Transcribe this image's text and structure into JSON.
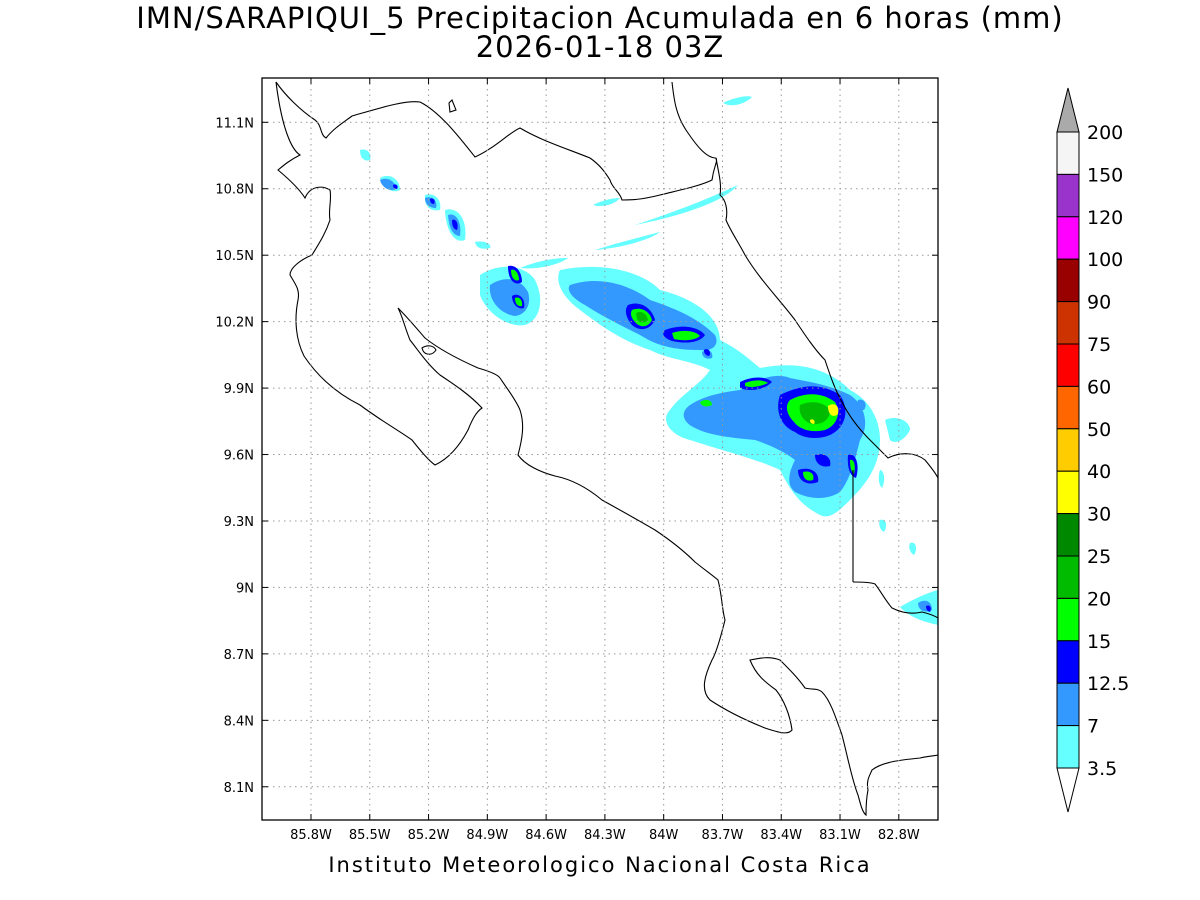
{
  "title": {
    "line1": "IMN/SARAPIQUI_5 Precipitacion Acumulada en 6 horas (mm)",
    "line2": "2026-01-18 03Z"
  },
  "credit": "Instituto Meteorologico Nacional Costa Rica",
  "map": {
    "lon_range": [
      -86.05,
      -82.6
    ],
    "lat_range": [
      7.95,
      11.3
    ],
    "lon_ticks": [
      "85.8W",
      "85.5W",
      "85.2W",
      "84.9W",
      "84.6W",
      "84.3W",
      "84W",
      "83.7W",
      "83.4W",
      "83.1W",
      "82.8W"
    ],
    "lat_ticks": [
      "11.1N",
      "10.8N",
      "10.5N",
      "10.2N",
      "9.9N",
      "9.6N",
      "9.3N",
      "9N",
      "8.7N",
      "8.4N",
      "8.1N"
    ],
    "grid": "dotted"
  },
  "colorbar": {
    "levels": [
      "200",
      "150",
      "120",
      "100",
      "90",
      "75",
      "60",
      "50",
      "40",
      "30",
      "25",
      "20",
      "15",
      "12.5",
      "7",
      "3.5"
    ],
    "colors": [
      "#f5f5f5",
      "#9933cc",
      "#ff00ff",
      "#990000",
      "#cc3300",
      "#ff0000",
      "#ff6600",
      "#ffcc00",
      "#ffff00",
      "#008800",
      "#00bb00",
      "#00ff00",
      "#0000ff",
      "#3399ff",
      "#66ffff"
    ],
    "top_arrow_color": "#aaaaaa",
    "bottom_arrow_color": "#ffffff"
  }
}
